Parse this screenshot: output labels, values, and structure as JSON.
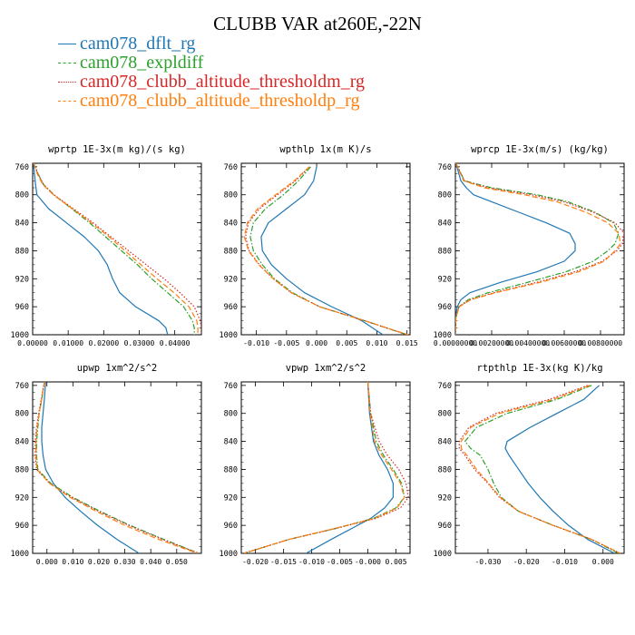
{
  "title": "CLUBB VAR at260E,-22N",
  "legend": [
    {
      "label": "cam078_dflt_rg",
      "color": "#1f77b4",
      "dash": "solid"
    },
    {
      "label": "cam078_expldiff",
      "color": "#2ca02c",
      "dash": "dashdot"
    },
    {
      "label": "cam078_clubb_altitude_thresholdm_rg",
      "color": "#d62728",
      "dash": "dotted"
    },
    {
      "label": "cam078_clubb_altitude_thresholdp_rg",
      "color": "#ff7f0e",
      "dash": "dashed"
    }
  ],
  "chart_data": [
    {
      "type": "line",
      "title": "wprtp  1E-3x(m kg)/(s kg)",
      "xlim": [
        0,
        0.0475
      ],
      "ylim": [
        755,
        1000
      ],
      "xticks": [
        0,
        0.01,
        0.02,
        0.03,
        0.04
      ],
      "xticklabels": [
        "0.00000",
        "0.01000",
        "0.02000",
        "0.03000",
        "0.04000"
      ],
      "yticks": [
        760,
        800,
        840,
        880,
        920,
        960,
        1000
      ],
      "series": [
        {
          "name": "cam078_dflt_rg",
          "y": [
            755,
            770,
            785,
            800,
            820,
            840,
            860,
            880,
            900,
            920,
            940,
            960,
            980,
            990,
            1000
          ],
          "x": [
            0.0002,
            0.0005,
            0.0008,
            0.0012,
            0.0045,
            0.0095,
            0.0145,
            0.0185,
            0.021,
            0.0225,
            0.0245,
            0.029,
            0.0355,
            0.0375,
            0.038
          ]
        },
        {
          "name": "cam078_expldiff",
          "y": [
            755,
            770,
            785,
            800,
            820,
            840,
            860,
            880,
            900,
            920,
            940,
            960,
            980,
            990,
            1000
          ],
          "x": [
            0.0003,
            0.0015,
            0.003,
            0.006,
            0.011,
            0.016,
            0.0205,
            0.025,
            0.0295,
            0.0335,
            0.038,
            0.0425,
            0.045,
            0.0455,
            0.0455
          ]
        },
        {
          "name": "cam078_clubb_altitude_thresholdm_rg",
          "y": [
            755,
            770,
            785,
            800,
            820,
            840,
            860,
            880,
            900,
            920,
            940,
            960,
            980,
            990,
            1000
          ],
          "x": [
            0.0003,
            0.0015,
            0.003,
            0.006,
            0.0115,
            0.017,
            0.022,
            0.027,
            0.032,
            0.037,
            0.0415,
            0.0455,
            0.0472,
            0.0475,
            0.0475
          ]
        },
        {
          "name": "cam078_clubb_altitude_thresholdp_rg",
          "y": [
            755,
            770,
            785,
            800,
            820,
            840,
            860,
            880,
            900,
            920,
            940,
            960,
            980,
            990,
            1000
          ],
          "x": [
            0.0003,
            0.0013,
            0.0028,
            0.0058,
            0.0112,
            0.0165,
            0.0215,
            0.026,
            0.0305,
            0.035,
            0.0398,
            0.044,
            0.0462,
            0.0465,
            0.0465
          ]
        }
      ]
    },
    {
      "type": "line",
      "title": "wpthlp  1x(m K)/s",
      "xlim": [
        -0.0125,
        0.0155
      ],
      "ylim": [
        755,
        1000
      ],
      "xticks": [
        -0.01,
        -0.005,
        0,
        0.005,
        0.01,
        0.015
      ],
      "xticklabels": [
        "-0.010",
        "-0.005",
        "0.000",
        "0.005",
        "0.010",
        "0.015"
      ],
      "yticks": [
        760,
        800,
        840,
        880,
        920,
        960,
        1000
      ],
      "series": [
        {
          "name": "cam078_dflt_rg",
          "y": [
            760,
            780,
            800,
            820,
            840,
            860,
            880,
            900,
            920,
            940,
            960,
            980,
            1000
          ],
          "x": [
            0.0,
            -0.0005,
            -0.002,
            -0.005,
            -0.008,
            -0.0092,
            -0.009,
            -0.0075,
            -0.005,
            -0.002,
            0.0025,
            0.0075,
            0.011
          ]
        },
        {
          "name": "cam078_expldiff",
          "y": [
            760,
            780,
            800,
            820,
            840,
            860,
            880,
            900,
            920,
            940,
            960,
            980,
            1000
          ],
          "x": [
            -0.001,
            -0.003,
            -0.0055,
            -0.0085,
            -0.0105,
            -0.011,
            -0.0105,
            -0.009,
            -0.007,
            -0.004,
            0.0005,
            0.008,
            0.015
          ]
        },
        {
          "name": "cam078_clubb_altitude_thresholdm_rg",
          "y": [
            760,
            780,
            800,
            820,
            840,
            860,
            880,
            900,
            920,
            940,
            960,
            980,
            1000
          ],
          "x": [
            -0.0012,
            -0.0035,
            -0.0065,
            -0.0095,
            -0.0113,
            -0.0118,
            -0.0112,
            -0.0095,
            -0.0072,
            -0.0042,
            0.0005,
            0.008,
            0.015
          ]
        },
        {
          "name": "cam078_clubb_altitude_thresholdp_rg",
          "y": [
            760,
            780,
            800,
            820,
            840,
            860,
            880,
            900,
            920,
            940,
            960,
            980,
            1000
          ],
          "x": [
            -0.0012,
            -0.0037,
            -0.0068,
            -0.0098,
            -0.0115,
            -0.012,
            -0.0113,
            -0.0096,
            -0.0072,
            -0.0042,
            0.0005,
            0.008,
            0.0152
          ]
        }
      ]
    },
    {
      "type": "line",
      "title": "wprcp  1E-3x(m/s) (kg/kg)",
      "xlim": [
        0,
        0.0093
      ],
      "ylim": [
        755,
        1000
      ],
      "xticks": [
        0,
        0.002,
        0.004,
        0.006,
        0.008
      ],
      "xticklabels": [
        "0.00000000",
        "0.00200000",
        "0.00400000",
        "0.00600000",
        "0.00800000"
      ],
      "yticks": [
        760,
        800,
        840,
        880,
        920,
        960,
        1000
      ],
      "series": [
        {
          "name": "cam078_dflt_rg",
          "y": [
            755,
            780,
            790,
            800,
            810,
            825,
            840,
            855,
            870,
            880,
            895,
            910,
            925,
            940,
            950,
            960,
            975,
            1000
          ],
          "x": [
            3e-05,
            0.0003,
            0.0006,
            0.001,
            0.002,
            0.0035,
            0.005,
            0.0063,
            0.0066,
            0.0066,
            0.006,
            0.0045,
            0.0025,
            0.0008,
            0.0003,
            0.0001,
            2e-05,
            0.0
          ]
        },
        {
          "name": "cam078_expldiff",
          "y": [
            755,
            780,
            790,
            800,
            810,
            825,
            840,
            855,
            870,
            880,
            895,
            910,
            925,
            940,
            950,
            960,
            975,
            1000
          ],
          "x": [
            3e-05,
            0.0005,
            0.002,
            0.0045,
            0.0062,
            0.0077,
            0.0087,
            0.009,
            0.0088,
            0.0084,
            0.0076,
            0.0061,
            0.004,
            0.0018,
            0.0007,
            0.0002,
            3e-05,
            0.0
          ]
        },
        {
          "name": "cam078_clubb_altitude_thresholdm_rg",
          "y": [
            755,
            780,
            790,
            800,
            810,
            825,
            840,
            855,
            870,
            880,
            895,
            910,
            925,
            940,
            950,
            960,
            975,
            1000
          ],
          "x": [
            3e-05,
            0.0005,
            0.0018,
            0.0042,
            0.006,
            0.0076,
            0.0088,
            0.0093,
            0.0092,
            0.0089,
            0.0081,
            0.0066,
            0.0045,
            0.0021,
            0.0008,
            0.0002,
            3e-05,
            0.0
          ]
        },
        {
          "name": "cam078_clubb_altitude_thresholdp_rg",
          "y": [
            755,
            780,
            790,
            800,
            810,
            825,
            840,
            855,
            870,
            880,
            895,
            910,
            925,
            940,
            950,
            960,
            975,
            1000
          ],
          "x": [
            3e-05,
            0.00045,
            0.0016,
            0.0038,
            0.0056,
            0.0072,
            0.0084,
            0.009,
            0.0091,
            0.0088,
            0.0082,
            0.0068,
            0.0047,
            0.0022,
            0.00085,
            0.00022,
            3e-05,
            0.0
          ]
        }
      ]
    },
    {
      "type": "line",
      "title": "upwp  1xm^2/s^2",
      "xlim": [
        -0.0055,
        0.0595
      ],
      "ylim": [
        755,
        1000
      ],
      "xticks": [
        0,
        0.01,
        0.02,
        0.03,
        0.04,
        0.05
      ],
      "xticklabels": [
        "0.000",
        "0.010",
        "0.020",
        "0.030",
        "0.040",
        "0.050"
      ],
      "yticks": [
        760,
        800,
        840,
        880,
        920,
        960,
        1000
      ],
      "series": [
        {
          "name": "cam078_dflt_rg",
          "y": [
            755,
            780,
            800,
            820,
            840,
            860,
            880,
            900,
            920,
            940,
            960,
            980,
            1000
          ],
          "x": [
            -0.0005,
            -0.001,
            -0.0015,
            -0.002,
            -0.002,
            -0.0015,
            -0.0005,
            0.0025,
            0.007,
            0.013,
            0.0195,
            0.027,
            0.0355
          ]
        },
        {
          "name": "cam078_expldiff",
          "y": [
            755,
            780,
            800,
            820,
            840,
            860,
            880,
            900,
            920,
            940,
            960,
            980,
            1000
          ],
          "x": [
            -0.001,
            -0.002,
            -0.003,
            -0.0035,
            -0.004,
            -0.004,
            -0.0035,
            0.0015,
            0.01,
            0.0205,
            0.032,
            0.045,
            0.0585
          ]
        },
        {
          "name": "cam078_clubb_altitude_thresholdm_rg",
          "y": [
            755,
            780,
            800,
            820,
            840,
            860,
            880,
            900,
            920,
            940,
            960,
            980,
            1000
          ],
          "x": [
            -0.001,
            -0.0022,
            -0.0032,
            -0.004,
            -0.0045,
            -0.0045,
            -0.004,
            0.001,
            0.0095,
            0.02,
            0.0315,
            0.0445,
            0.0585
          ]
        },
        {
          "name": "cam078_clubb_altitude_thresholdp_rg",
          "y": [
            755,
            780,
            800,
            820,
            840,
            860,
            880,
            900,
            920,
            940,
            960,
            980,
            1000
          ],
          "x": [
            -0.001,
            -0.002,
            -0.003,
            -0.0038,
            -0.0042,
            -0.0042,
            -0.0038,
            0.001,
            0.009,
            0.019,
            0.03,
            0.043,
            0.058
          ]
        }
      ]
    },
    {
      "type": "line",
      "title": "vpwp  1xm^2/s^2",
      "xlim": [
        -0.0225,
        0.0075
      ],
      "ylim": [
        755,
        1000
      ],
      "xticks": [
        -0.02,
        -0.015,
        -0.01,
        -0.005,
        0,
        0.005
      ],
      "xticklabels": [
        "-0.020",
        "-0.015",
        "-0.010",
        "-0.005",
        "-0.000",
        "0.005"
      ],
      "yticks": [
        760,
        800,
        840,
        880,
        920,
        960,
        1000
      ],
      "series": [
        {
          "name": "cam078_dflt_rg",
          "y": [
            755,
            800,
            840,
            860,
            880,
            900,
            920,
            935,
            950,
            965,
            980,
            1000
          ],
          "x": [
            0.0,
            0.0003,
            0.001,
            0.002,
            0.0035,
            0.0045,
            0.0045,
            0.003,
            0.0005,
            -0.003,
            -0.0065,
            -0.011
          ]
        },
        {
          "name": "cam078_expldiff",
          "y": [
            755,
            800,
            840,
            860,
            880,
            900,
            920,
            935,
            950,
            965,
            980,
            1000
          ],
          "x": [
            0.0,
            0.0005,
            0.0015,
            0.0028,
            0.0045,
            0.006,
            0.0065,
            0.005,
            0.001,
            -0.006,
            -0.014,
            -0.022
          ]
        },
        {
          "name": "cam078_clubb_altitude_thresholdm_rg",
          "y": [
            755,
            800,
            840,
            860,
            880,
            900,
            920,
            935,
            950,
            965,
            980,
            1000
          ],
          "x": [
            0.0,
            0.0005,
            0.002,
            0.0035,
            0.0055,
            0.0068,
            0.0072,
            0.0058,
            0.0015,
            -0.006,
            -0.014,
            -0.0222
          ]
        },
        {
          "name": "cam078_clubb_altitude_thresholdp_rg",
          "y": [
            755,
            800,
            840,
            860,
            880,
            900,
            920,
            935,
            950,
            965,
            980,
            1000
          ],
          "x": [
            0.0,
            0.0004,
            0.0012,
            0.0025,
            0.0042,
            0.0058,
            0.0065,
            0.0052,
            0.0012,
            -0.0062,
            -0.014,
            -0.022
          ]
        }
      ]
    },
    {
      "type": "line",
      "title": "rtpthlp  1E-3x(kg K)/kg",
      "xlim": [
        -0.0385,
        0.0055
      ],
      "ylim": [
        755,
        1000
      ],
      "xticks": [
        -0.03,
        -0.02,
        -0.01,
        0
      ],
      "xticklabels": [
        "-0.030",
        "-0.020",
        "-0.010",
        "0.000"
      ],
      "yticks": [
        760,
        800,
        840,
        880,
        920,
        960,
        1000
      ],
      "series": [
        {
          "name": "cam078_dflt_rg",
          "y": [
            760,
            780,
            800,
            820,
            840,
            850,
            860,
            880,
            900,
            920,
            940,
            960,
            980,
            1000
          ],
          "x": [
            -0.001,
            -0.005,
            -0.012,
            -0.019,
            -0.025,
            -0.0255,
            -0.0245,
            -0.022,
            -0.0195,
            -0.0165,
            -0.013,
            -0.009,
            -0.004,
            0.003
          ]
        },
        {
          "name": "cam078_expldiff",
          "y": [
            760,
            780,
            800,
            820,
            840,
            850,
            860,
            880,
            900,
            920,
            940,
            960,
            980,
            1000
          ],
          "x": [
            -0.003,
            -0.012,
            -0.025,
            -0.033,
            -0.036,
            -0.0345,
            -0.032,
            -0.03,
            -0.0285,
            -0.0265,
            -0.022,
            -0.013,
            -0.003,
            0.004
          ]
        },
        {
          "name": "cam078_clubb_altitude_thresholdm_rg",
          "y": [
            760,
            780,
            800,
            820,
            840,
            850,
            860,
            880,
            900,
            920,
            940,
            960,
            980,
            1000
          ],
          "x": [
            -0.004,
            -0.014,
            -0.028,
            -0.035,
            -0.0375,
            -0.0375,
            -0.036,
            -0.0335,
            -0.03,
            -0.027,
            -0.022,
            -0.013,
            -0.003,
            0.0045
          ]
        },
        {
          "name": "cam078_clubb_altitude_thresholdp_rg",
          "y": [
            760,
            780,
            800,
            820,
            840,
            850,
            860,
            880,
            900,
            920,
            940,
            960,
            980,
            1000
          ],
          "x": [
            -0.0035,
            -0.013,
            -0.027,
            -0.0345,
            -0.037,
            -0.037,
            -0.0355,
            -0.033,
            -0.0298,
            -0.0268,
            -0.022,
            -0.013,
            -0.003,
            0.0045
          ]
        }
      ]
    }
  ]
}
